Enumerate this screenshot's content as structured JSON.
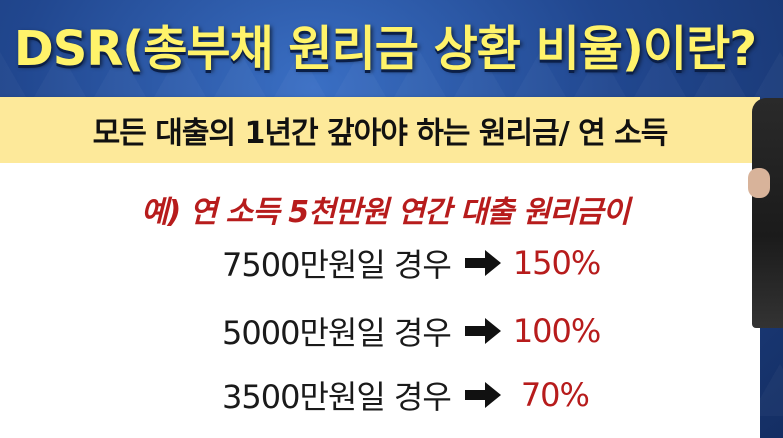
{
  "slide": {
    "title": "DSR(총부채 원리금 상환 비율)이란?",
    "definition": "모든 대출의 1년간 갚아야 하는 원리금/ 연 소득",
    "example": "예) 연 소득 5천만원 연간 대출 원리금이",
    "cases": [
      {
        "label": "7500만원일 경우",
        "value": "150%"
      },
      {
        "label": "5000만원일 경우",
        "value": "100%"
      },
      {
        "label": "3500만원일 경우",
        "value": "70%"
      }
    ],
    "arrow_icon": "right-arrow-icon",
    "colors": {
      "title": "#fff36a",
      "definition_bar": "#fde99a",
      "highlight": "#b71c1c",
      "background": "#21478f"
    }
  }
}
